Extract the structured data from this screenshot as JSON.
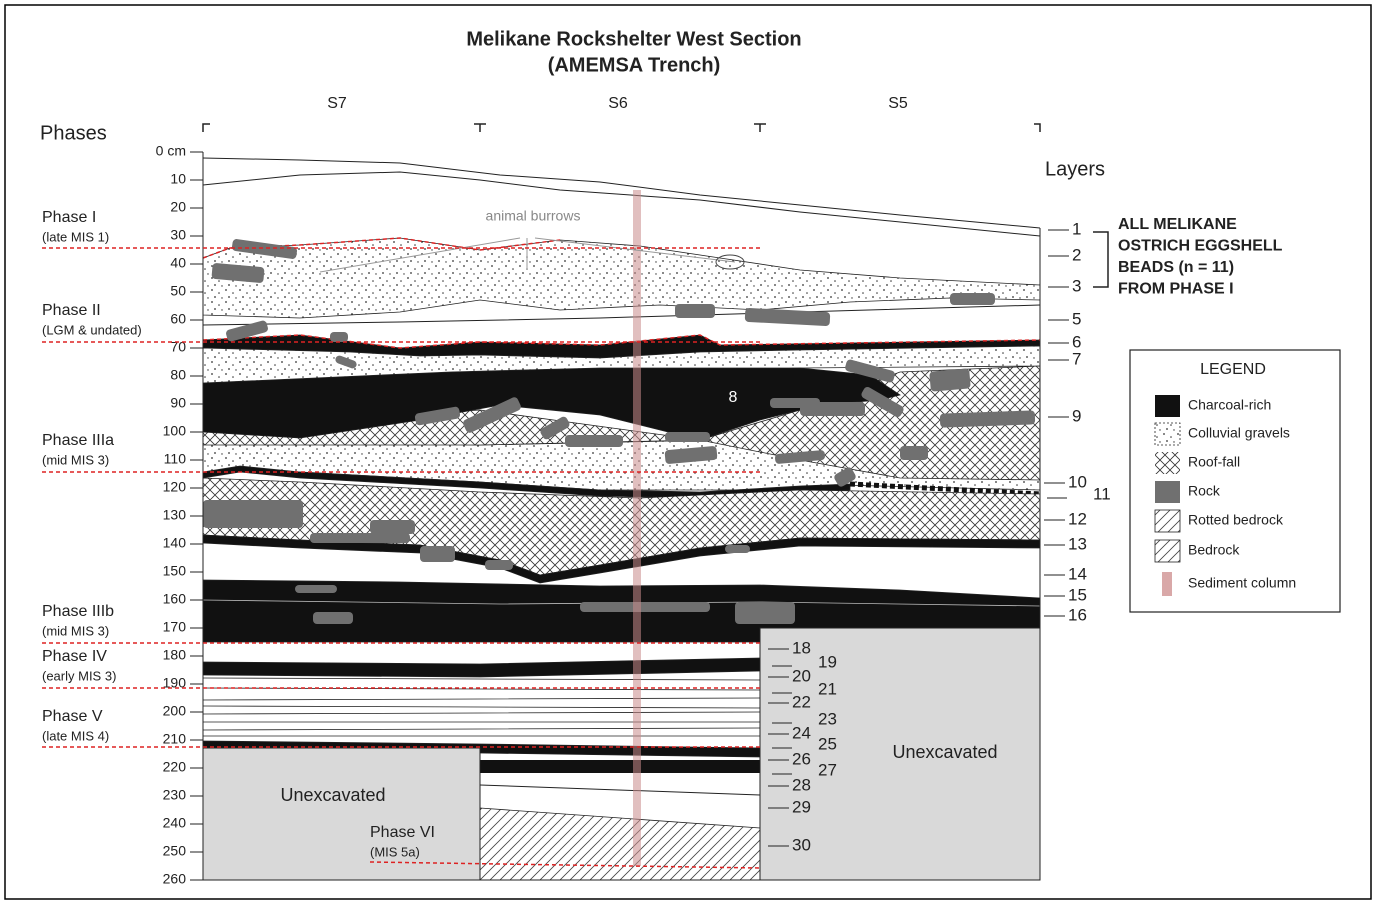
{
  "title": [
    "Melikane Rockshelter West Section",
    "(AMEMSA Trench)"
  ],
  "squares": [
    "S7",
    "S6",
    "S5"
  ],
  "phases_heading": "Phases",
  "depth_labels": [
    "0 cm",
    "10",
    "20",
    "30",
    "40",
    "50",
    "60",
    "70",
    "80",
    "90",
    "100",
    "110",
    "120",
    "130",
    "140",
    "150",
    "160",
    "170",
    "180",
    "190",
    "200",
    "210",
    "220",
    "230",
    "240",
    "250",
    "260"
  ],
  "phases": [
    {
      "name": "Phase I",
      "note": "(late MIS 1)"
    },
    {
      "name": "Phase II",
      "note": "(LGM & undated)"
    },
    {
      "name": "Phase IIIa",
      "note": "(mid MIS 3)"
    },
    {
      "name": "Phase IIIb",
      "note": "(mid MIS 3)"
    },
    {
      "name": "Phase IV",
      "note": "(early MIS 3)"
    },
    {
      "name": "Phase V",
      "note": "(late MIS 4)"
    },
    {
      "name": "Phase VI",
      "note": "(MIS 5a)"
    }
  ],
  "layers_heading": "Layers",
  "layers": [
    "1",
    "2",
    "3",
    "5",
    "6",
    "7",
    "9",
    "10",
    "11",
    "12",
    "13",
    "14",
    "15",
    "16",
    "18",
    "19",
    "20",
    "21",
    "22",
    "23",
    "24",
    "25",
    "26",
    "27",
    "28",
    "29",
    "30"
  ],
  "beads_note": [
    "ALL MELIKANE",
    "OSTRICH EGGSHELL",
    "BEADS  (n = 11)",
    "FROM PHASE I"
  ],
  "annotations": {
    "burrows": "animal burrows",
    "layer_8": "8",
    "unexcavated": [
      "Unexcavated",
      "Unexcavated"
    ]
  },
  "legend": {
    "title": "LEGEND",
    "items": [
      "Charcoal-rich",
      "Colluvial gravels",
      "Roof-fall",
      "Rock",
      "Rotted bedrock",
      "Bedrock",
      "Sediment column"
    ]
  }
}
